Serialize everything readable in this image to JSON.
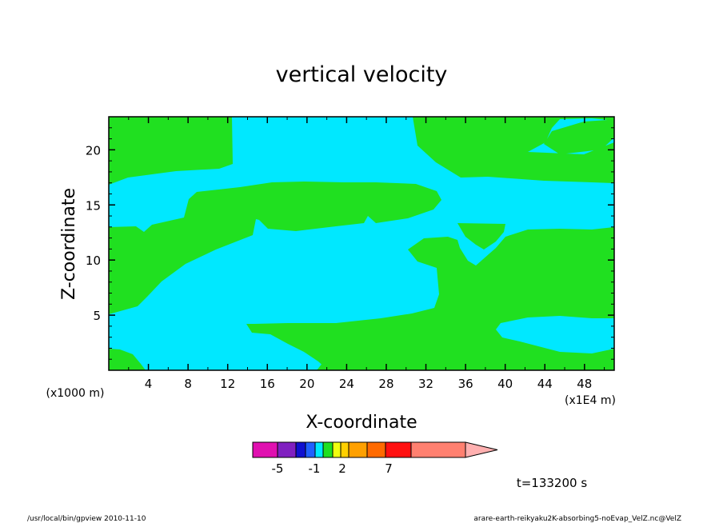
{
  "chart_data": {
    "type": "heatmap",
    "title": "vertical velocity",
    "xlabel": "X-coordinate",
    "ylabel": "Z-coordinate",
    "x_unit": "(x1E4 m)",
    "y_unit": "(x1000 m)",
    "xlim": [
      0,
      51
    ],
    "ylim": [
      0,
      23
    ],
    "x_ticks": [
      "4",
      "8",
      "12",
      "16",
      "20",
      "24",
      "28",
      "32",
      "36",
      "40",
      "44",
      "48"
    ],
    "y_ticks": [
      "5",
      "10",
      "15",
      "20"
    ],
    "colors": {
      "negative_small": "#00e8ff",
      "positive_small": "#20e020"
    },
    "colorbar": {
      "colors": [
        "#e010b0",
        "#8020c0",
        "#1010d0",
        "#2060ff",
        "#00e8ff",
        "#20e020",
        "#f0ff10",
        "#ffd000",
        "#ffa000",
        "#ff6a00",
        "#ff1010",
        "#ff8070",
        "#ffb0b0"
      ],
      "labels": [
        "-5",
        "-1",
        "2",
        "7"
      ]
    },
    "time_label": "t=133200 s"
  },
  "footer": {
    "left": "/usr/local/bin/gpview  2010-11-10",
    "right": "arare-earth-reikyaku2K-absorbing5-noEvap_VelZ.nc@VelZ"
  }
}
